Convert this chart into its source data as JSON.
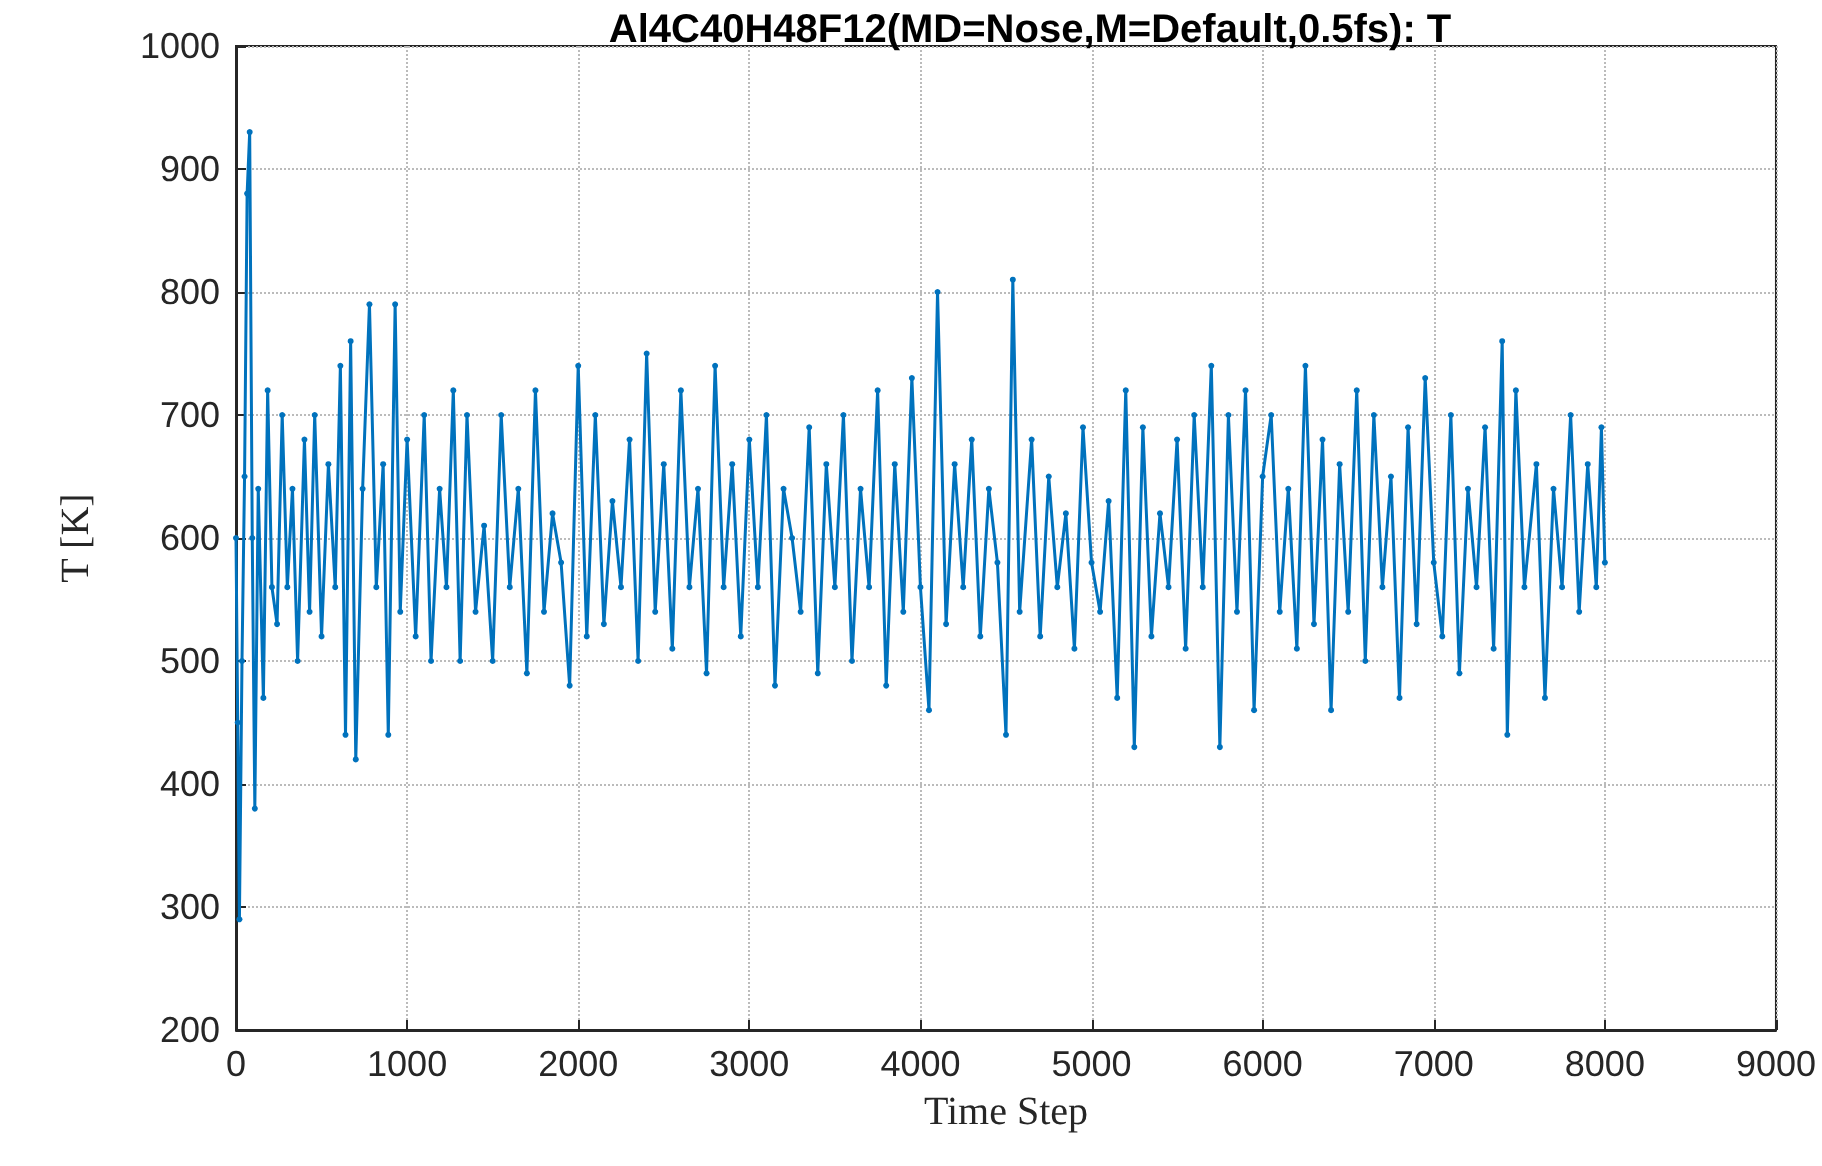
{
  "chart_data": {
    "type": "line",
    "title": "Al4C40H48F12(MD=Nose,M=Default,0.5fs): T",
    "xlabel": "Time Step",
    "ylabel": "T [K]",
    "xlim": [
      0,
      9000
    ],
    "xticks": [
      0,
      1000,
      2000,
      3000,
      4000,
      5000,
      6000,
      7000,
      8000,
      9000
    ],
    "ylim": [
      200,
      1000
    ],
    "yticks": [
      200,
      300,
      400,
      500,
      600,
      700,
      800,
      900,
      1000
    ],
    "grid": true,
    "marker": "circle",
    "line_style": "solid",
    "series": [
      {
        "color": "#0072bd",
        "x": [
          0,
          10,
          20,
          35,
          50,
          65,
          80,
          95,
          110,
          130,
          160,
          185,
          210,
          240,
          270,
          300,
          330,
          360,
          400,
          430,
          460,
          500,
          540,
          580,
          610,
          640,
          670,
          700,
          740,
          780,
          820,
          860,
          890,
          930,
          960,
          1000,
          1050,
          1100,
          1140,
          1190,
          1230,
          1270,
          1310,
          1350,
          1400,
          1450,
          1500,
          1550,
          1600,
          1650,
          1700,
          1750,
          1800,
          1850,
          1900,
          1950,
          2000,
          2050,
          2100,
          2150,
          2200,
          2250,
          2300,
          2350,
          2400,
          2450,
          2500,
          2550,
          2600,
          2650,
          2700,
          2750,
          2800,
          2850,
          2900,
          2950,
          3000,
          3050,
          3100,
          3150,
          3200,
          3250,
          3300,
          3350,
          3400,
          3450,
          3500,
          3550,
          3600,
          3650,
          3700,
          3750,
          3800,
          3850,
          3900,
          3950,
          4000,
          4050,
          4100,
          4150,
          4200,
          4250,
          4300,
          4350,
          4400,
          4450,
          4500,
          4540,
          4580,
          4650,
          4700,
          4750,
          4800,
          4850,
          4900,
          4950,
          5000,
          5050,
          5100,
          5150,
          5200,
          5250,
          5300,
          5350,
          5400,
          5450,
          5500,
          5550,
          5600,
          5650,
          5700,
          5750,
          5800,
          5850,
          5900,
          5950,
          6000,
          6050,
          6100,
          6150,
          6200,
          6250,
          6300,
          6350,
          6400,
          6450,
          6500,
          6550,
          6600,
          6650,
          6700,
          6750,
          6800,
          6850,
          6900,
          6950,
          7000,
          7050,
          7100,
          7150,
          7200,
          7250,
          7300,
          7350,
          7400,
          7430,
          7480,
          7530,
          7600,
          7650,
          7700,
          7750,
          7800,
          7850,
          7900,
          7950,
          7980,
          8000
        ],
        "values": [
          600,
          450,
          290,
          500,
          650,
          880,
          930,
          600,
          380,
          640,
          470,
          720,
          560,
          530,
          700,
          560,
          640,
          500,
          680,
          540,
          700,
          520,
          660,
          560,
          740,
          440,
          760,
          420,
          640,
          790,
          560,
          660,
          440,
          790,
          540,
          680,
          520,
          700,
          500,
          640,
          560,
          720,
          500,
          700,
          540,
          610,
          500,
          700,
          560,
          640,
          490,
          720,
          540,
          620,
          580,
          480,
          740,
          520,
          700,
          530,
          630,
          560,
          680,
          500,
          750,
          540,
          660,
          510,
          720,
          560,
          640,
          490,
          740,
          560,
          660,
          520,
          680,
          560,
          700,
          480,
          640,
          600,
          540,
          690,
          490,
          660,
          560,
          700,
          500,
          640,
          560,
          720,
          480,
          660,
          540,
          730,
          560,
          460,
          800,
          530,
          660,
          560,
          680,
          520,
          640,
          580,
          440,
          810,
          540,
          680,
          520,
          650,
          560,
          620,
          510,
          690,
          580,
          540,
          630,
          470,
          720,
          430,
          690,
          520,
          620,
          560,
          680,
          510,
          700,
          560,
          740,
          430,
          700,
          540,
          720,
          460,
          650,
          700,
          540,
          640,
          510,
          740,
          530,
          680,
          460,
          660,
          540,
          720,
          500,
          700,
          560,
          650,
          470,
          690,
          530,
          730,
          580,
          520,
          700,
          490,
          640,
          560,
          690,
          510,
          760,
          440,
          720,
          560,
          660,
          470,
          640,
          560,
          700,
          540,
          660,
          560,
          690,
          580
        ]
      }
    ]
  }
}
